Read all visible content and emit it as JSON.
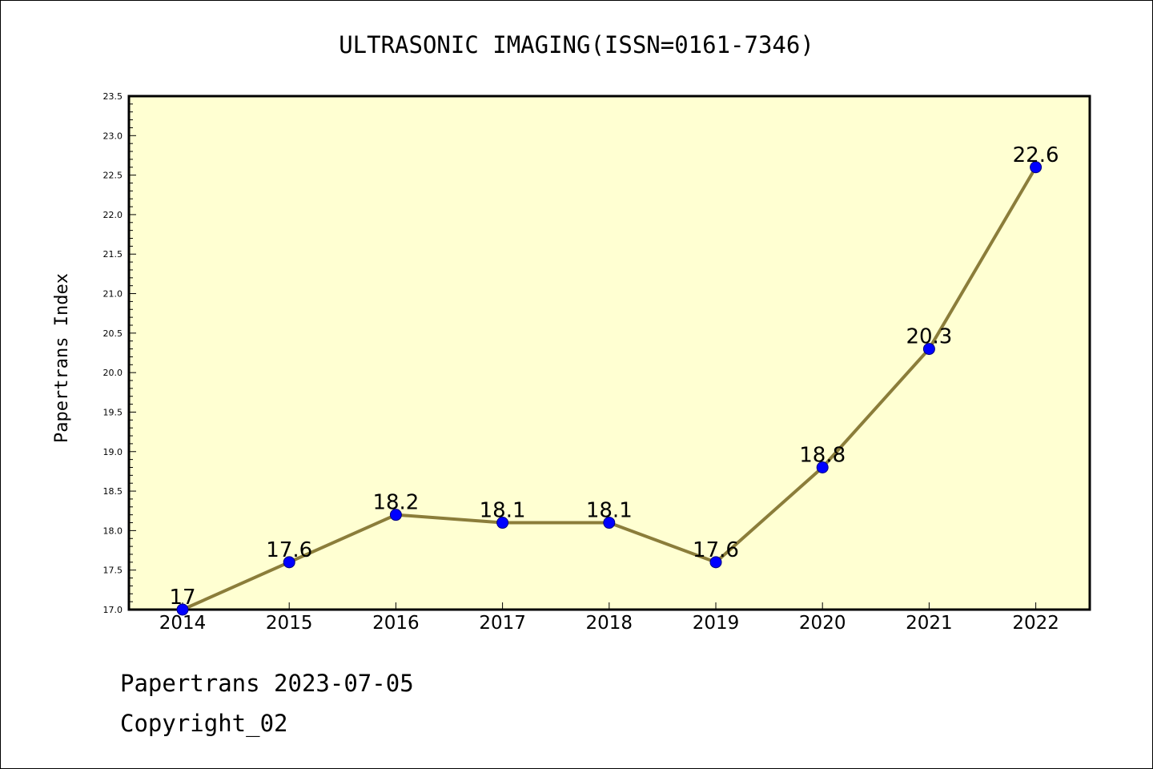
{
  "chart_data": {
    "type": "line",
    "title": "ULTRASONIC IMAGING(ISSN=0161-7346)",
    "xlabel": "",
    "ylabel": "Papertrans Index",
    "categories": [
      "2014",
      "2015",
      "2016",
      "2017",
      "2018",
      "2019",
      "2020",
      "2021",
      "2022"
    ],
    "series": [
      {
        "values": [
          17,
          17.6,
          18.2,
          18.1,
          18.1,
          17.6,
          18.8,
          20.3,
          22.6
        ],
        "labels": [
          "17",
          "17.6",
          "18.2",
          "18.1",
          "18.1",
          "17.6",
          "18.8",
          "20.3",
          "22.6"
        ]
      }
    ],
    "ylim": [
      17.0,
      23.5
    ],
    "yticks": [
      "17.0",
      "17.5",
      "18.0",
      "18.5",
      "19.0",
      "19.5",
      "20.0",
      "20.5",
      "21.0",
      "21.5",
      "22.0",
      "22.5",
      "23.0",
      "23.5"
    ],
    "grid": false,
    "colors": {
      "plot_background": "#ffffd2",
      "line": "#8b7d3a",
      "marker": "#0000ff"
    }
  },
  "footer": {
    "line1": "Papertrans 2023-07-05",
    "line2": "Copyright_02"
  }
}
